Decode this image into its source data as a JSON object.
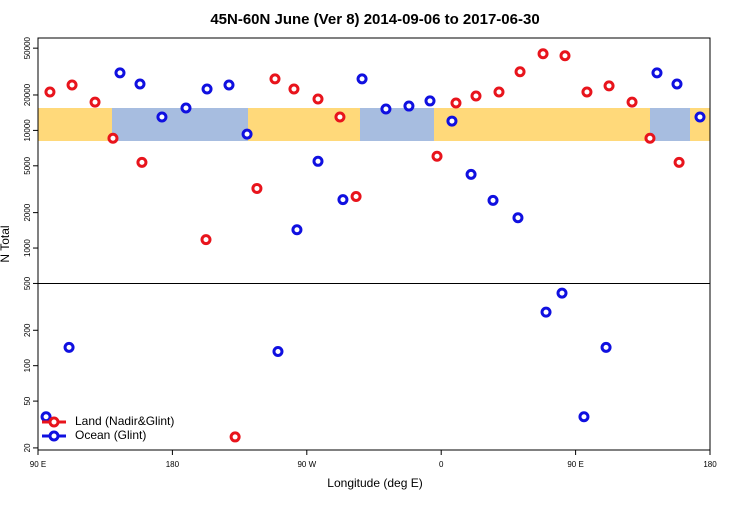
{
  "chart_data": {
    "type": "scatter",
    "title": "45N-60N June (Ver 8)   2014-09-06 to 2017-06-30",
    "x_label": "Longitude (deg E)",
    "y_label": "N Total",
    "log_y": true,
    "xlim": [
      90,
      540
    ],
    "ylim": [
      19.2,
      61000
    ],
    "xticks": [
      {
        "value": 90,
        "label": "90 E"
      },
      180,
      {
        "value": 270,
        "label": "90 W"
      },
      {
        "value": 360,
        "label": "0"
      },
      {
        "value": 450,
        "label": "90 E"
      },
      {
        "value": 540,
        "label": "180"
      }
    ],
    "yticks": [
      20,
      50,
      100,
      200,
      500,
      1000,
      2000,
      5000,
      10000,
      20000,
      50000
    ],
    "hline": 500,
    "legend": "lower left",
    "series": [
      {
        "name": "Land (Nadir&Glint)",
        "color": "#e8141c",
        "x": [
          98,
          112.8,
          128.2,
          140.2,
          159.6,
          202.5,
          222,
          236.6,
          248.7,
          261.4,
          277.5,
          292.2,
          303,
          357.2,
          369.9,
          383.3,
          398.7,
          412.8,
          428.2,
          442.9,
          457.6,
          472.4,
          487.8,
          499.8,
          519.3
        ],
        "values": [
          21200,
          24300,
          17400,
          8580,
          5350,
          1180,
          24.8,
          3210,
          27400,
          22500,
          18500,
          13000,
          2740,
          6030,
          17100,
          19600,
          21200,
          31500,
          44800,
          43100,
          21200,
          23900,
          17400,
          8580,
          5350
        ]
      },
      {
        "name": "Ocean (Glint)",
        "color": "#1010e0",
        "x": [
          95.4,
          110.8,
          144.9,
          158.3,
          173,
          189.1,
          203.2,
          217.9,
          230,
          250.7,
          263.4,
          277.5,
          294.2,
          307,
          323,
          338.4,
          352.5,
          367.2,
          380,
          394.7,
          411.4,
          430.2,
          440.9,
          455.6,
          470.4,
          504.5,
          517.9,
          533.3
        ],
        "values": [
          36.8,
          143,
          30800,
          24800,
          13000,
          15500,
          22500,
          24300,
          9290,
          132,
          1430,
          5460,
          2580,
          27400,
          15200,
          16100,
          17800,
          12000,
          4230,
          2540,
          1810,
          285,
          414,
          36.8,
          143,
          30800,
          24800,
          13000
        ]
      }
    ]
  }
}
